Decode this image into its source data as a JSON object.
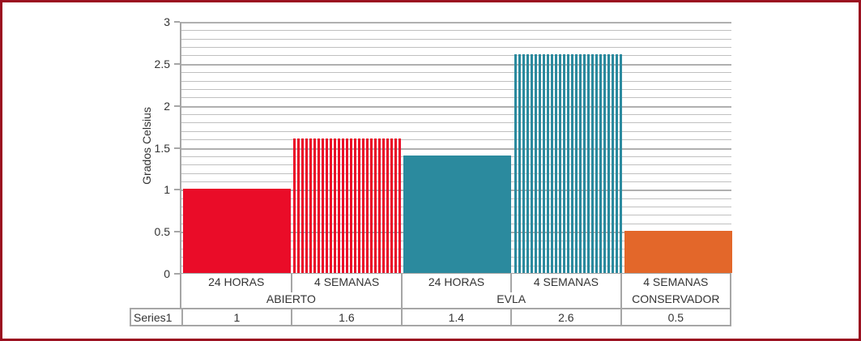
{
  "chart_data": {
    "type": "bar",
    "title": "",
    "ylabel": "Grados Celsius",
    "ylim": [
      0,
      3
    ],
    "ytick_step": 0.5,
    "minor_grid_step": 0.1,
    "yticks": [
      "0",
      "0.5",
      "1",
      "1.5",
      "2",
      "2.5",
      "3"
    ],
    "categories": [
      "24 HORAS",
      "4 SEMANAS",
      "24 HORAS",
      "4 SEMANAS",
      "4 SEMANAS"
    ],
    "groups": [
      {
        "label": "ABIERTO",
        "span": 2
      },
      {
        "label": "EVLA",
        "span": 2
      },
      {
        "label": "CONSERVADOR",
        "span": 1
      }
    ],
    "series": [
      {
        "name": "Series1",
        "values": [
          1,
          1.6,
          1.4,
          2.6,
          0.5
        ]
      }
    ],
    "bar_styles": [
      {
        "color": "#ea0c28",
        "pattern": "solid"
      },
      {
        "color": "#ea0c28",
        "pattern": "vertical-stripes"
      },
      {
        "color": "#2b8a9e",
        "pattern": "solid"
      },
      {
        "color": "#2b8a9e",
        "pattern": "vertical-stripes"
      },
      {
        "color": "#e3672a",
        "pattern": "solid"
      }
    ],
    "legend_position": "none",
    "grid": true,
    "data_table_shown": true
  },
  "colors": {
    "frame_border": "#9b1020",
    "grid_minor": "#c0c0c0",
    "grid_major": "#b0b0b0",
    "axis": "#a6a6a6",
    "text": "#333333",
    "background": "#ffffff"
  }
}
